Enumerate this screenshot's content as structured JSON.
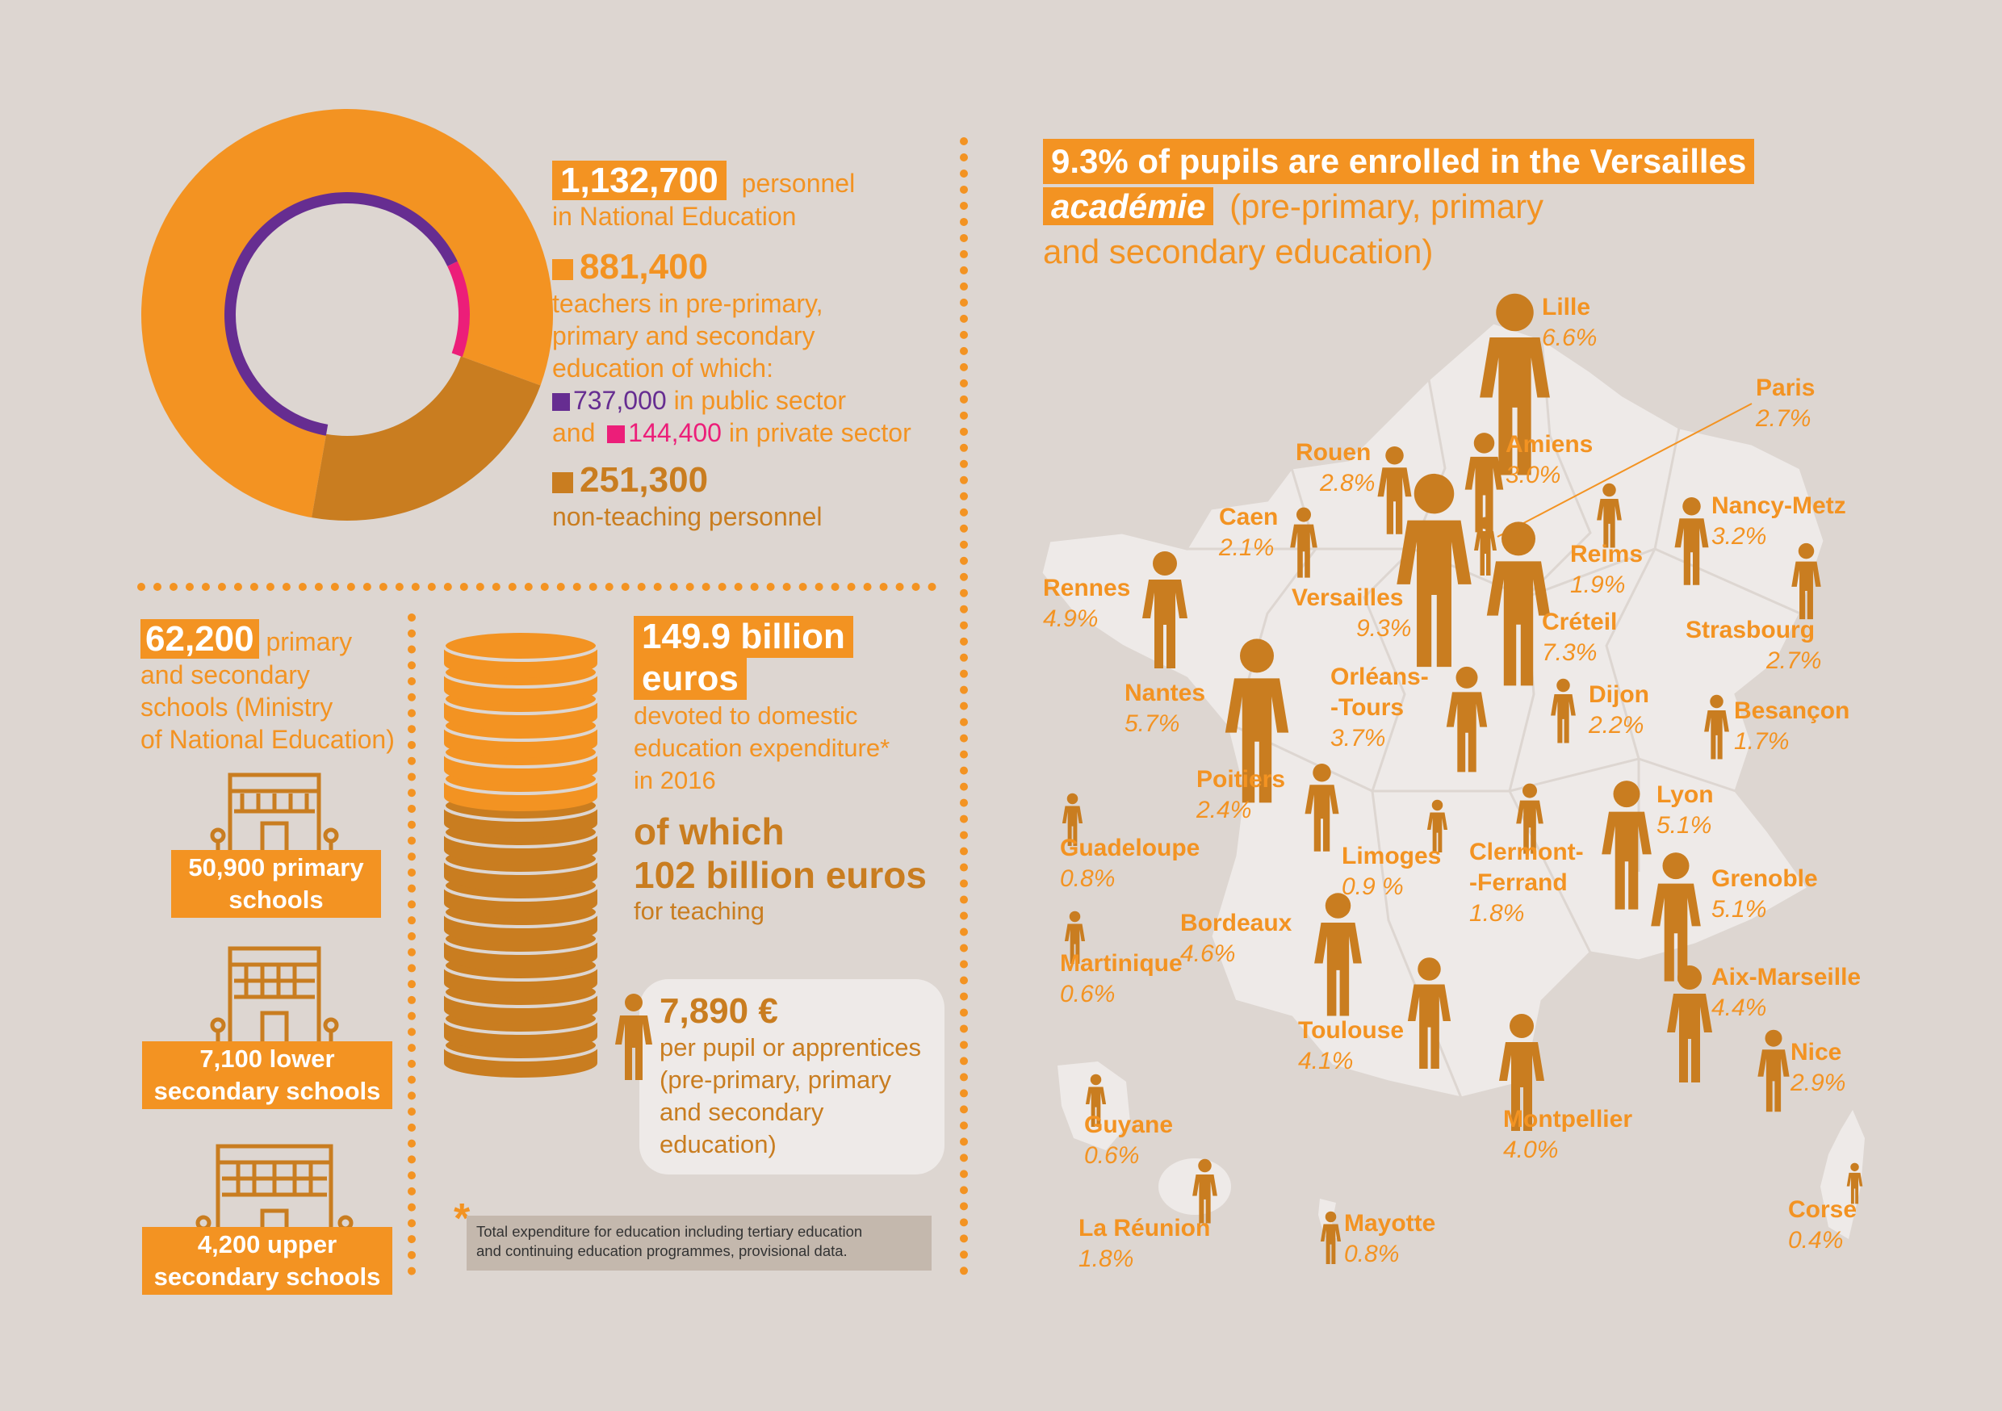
{
  "personnel": {
    "total_value": "1,132,700",
    "total_label_1": "personnel",
    "total_label_2": "in National Education",
    "teachers_value": "881,400",
    "teachers_label_1": "teachers in pre-primary,",
    "teachers_label_2": "primary and secondary",
    "teachers_label_3": "education of which:",
    "public_value": "737,000",
    "public_label": "in public sector",
    "and_label": "and",
    "private_value": "144,400",
    "private_label": "in private sector",
    "nonteaching_value": "251,300",
    "nonteaching_label": "non-teaching personnel",
    "colors": {
      "teachers": "#f39322",
      "nonteaching": "#c97d20",
      "public": "#662d91",
      "private": "#ec1e79"
    }
  },
  "chart_data": {
    "type": "pie",
    "outer_ring": [
      {
        "name": "teachers",
        "value": 881400
      },
      {
        "name": "non-teaching personnel",
        "value": 251300
      }
    ],
    "inner_ring": [
      {
        "name": "public sector",
        "value": 737000
      },
      {
        "name": "private sector",
        "value": 144400
      }
    ]
  },
  "schools": {
    "total_value": "62,200",
    "label_1": "primary",
    "label_2": "and secondary",
    "label_3": "schools (Ministry",
    "label_4": "of National Education)",
    "primary_1": "50,900 primary",
    "primary_2": "schools",
    "lower_1": "7,100 lower",
    "lower_2": "secondary schools",
    "upper_1": "4,200 upper",
    "upper_2": "secondary schools"
  },
  "expenditure": {
    "value_1": "149.9 billion",
    "value_2": "euros",
    "label_1": "devoted to domestic",
    "label_2": "education expenditure*",
    "label_3": "in 2016",
    "teaching_1": "of which",
    "teaching_2": "102 billion euros",
    "teaching_3": "for teaching",
    "per_pupil_value": "7,890 €",
    "per_pupil_1": "per pupil or apprentices",
    "per_pupil_2": "(pre-primary, primary",
    "per_pupil_3": "and secondary",
    "per_pupil_4": "education)",
    "footnote_star": "*",
    "footnote_1": "Total expenditure for education including tertiary education",
    "footnote_2": "and continuing education programmes, provisional data."
  },
  "map": {
    "title_1": "9.3% of pupils are enrolled in the Versailles",
    "title_2": "académie",
    "title_3": "(pre-primary, primary",
    "title_4": "and secondary education)",
    "regions": [
      {
        "name": "Lille",
        "pct": "6.6%"
      },
      {
        "name": "Paris",
        "pct": "2.7%"
      },
      {
        "name": "Rouen",
        "pct": "2.8%"
      },
      {
        "name": "Amiens",
        "pct": "3.0%"
      },
      {
        "name": "Nancy-Metz",
        "pct": "3.2%"
      },
      {
        "name": "Caen",
        "pct": "2.1%"
      },
      {
        "name": "Reims",
        "pct": "1.9%"
      },
      {
        "name": "Rennes",
        "pct": "4.9%"
      },
      {
        "name": "Versailles",
        "pct": "9.3%"
      },
      {
        "name": "Créteil",
        "pct": "7.3%"
      },
      {
        "name": "Strasbourg",
        "pct": "2.7%"
      },
      {
        "name": "Nantes",
        "pct": "5.7%"
      },
      {
        "name": "Orléans-",
        "name2": "-Tours",
        "pct": "3.7%"
      },
      {
        "name": "Dijon",
        "pct": "2.2%"
      },
      {
        "name": "Besançon",
        "pct": "1.7%"
      },
      {
        "name": "Poitiers",
        "pct": "2.4%"
      },
      {
        "name": "Lyon",
        "pct": "5.1%"
      },
      {
        "name": "Guadeloupe",
        "pct": "0.8%"
      },
      {
        "name": "Limoges",
        "pct": "0.9 %"
      },
      {
        "name": "Clermont-",
        "name2": "-Ferrand",
        "pct": "1.8%"
      },
      {
        "name": "Grenoble",
        "pct": "5.1%"
      },
      {
        "name": "Bordeaux",
        "pct": "4.6%"
      },
      {
        "name": "Martinique",
        "pct": "0.6%"
      },
      {
        "name": "Aix-Marseille",
        "pct": "4.4%"
      },
      {
        "name": "Toulouse",
        "pct": "4.1%"
      },
      {
        "name": "Nice",
        "pct": "2.9%"
      },
      {
        "name": "Guyane",
        "pct": "0.6%"
      },
      {
        "name": "Montpellier",
        "pct": "4.0%"
      },
      {
        "name": "La Réunion",
        "pct": "1.8%"
      },
      {
        "name": "Mayotte",
        "pct": "0.8%"
      },
      {
        "name": "Corse",
        "pct": "0.4%"
      }
    ]
  }
}
